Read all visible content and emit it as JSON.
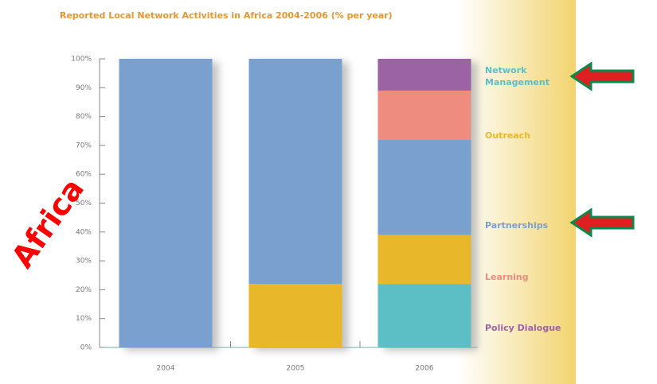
{
  "chart_data": {
    "type": "stacked_bar",
    "title": "Reported Local Network Activities in Africa 2004-2006 (% per year)",
    "annotation": "Africa",
    "categories": [
      "2004",
      "2005",
      "2006"
    ],
    "series": [
      {
        "name": "Network Management",
        "color": "#5bbfc6",
        "values": [
          0,
          0,
          22
        ]
      },
      {
        "name": "Outreach",
        "color": "#e9b72b",
        "values": [
          0,
          22,
          17
        ]
      },
      {
        "name": "Partnerships",
        "color": "#7aa0cf",
        "values": [
          100,
          78,
          33
        ]
      },
      {
        "name": "Learning",
        "color": "#ee8c80",
        "values": [
          0,
          0,
          17
        ]
      },
      {
        "name": "Policy Dialogue",
        "color": "#9c63a4",
        "values": [
          0,
          0,
          11
        ]
      }
    ],
    "ylim": [
      0,
      100
    ],
    "yticks": [
      {
        "value": 0,
        "label": "0%"
      },
      {
        "value": 10,
        "label": "10%"
      },
      {
        "value": 20,
        "label": "20%"
      },
      {
        "value": 30,
        "label": "30%"
      },
      {
        "value": 40,
        "label": "40%"
      },
      {
        "value": 50,
        "label": "50%"
      },
      {
        "value": 60,
        "label": "60%"
      },
      {
        "value": 70,
        "label": "70%"
      },
      {
        "value": 80,
        "label": "80%"
      },
      {
        "value": 90,
        "label": "90%"
      },
      {
        "value": 100,
        "label": "100%"
      }
    ],
    "grid": false,
    "legend": "right"
  }
}
